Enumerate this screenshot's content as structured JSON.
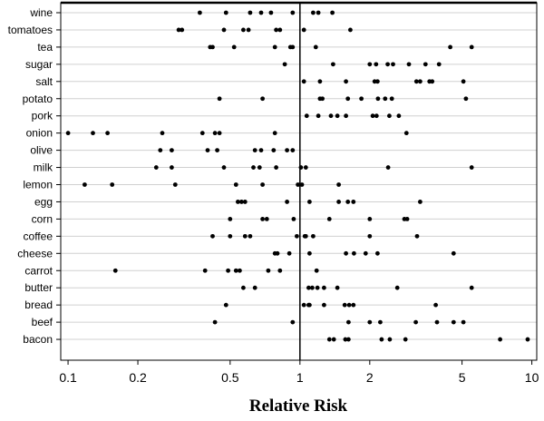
{
  "chart_data": {
    "type": "scatter",
    "xscale": "log",
    "xlim": [
      0.093,
      10.5
    ],
    "xlabel": "Relative Risk",
    "xticks": [
      0.1,
      0.2,
      0.5,
      1,
      2,
      5,
      10
    ],
    "xtick_labels": [
      "0.1",
      "0.2",
      "0.5",
      "1",
      "2",
      "5",
      "10"
    ],
    "reference_line": 1,
    "grid": "horizontal",
    "categories": [
      "wine",
      "tomatoes",
      "tea",
      "sugar",
      "salt",
      "potato",
      "pork",
      "onion",
      "olive",
      "milk",
      "lemon",
      "egg",
      "corn",
      "coffee",
      "cheese",
      "carrot",
      "butter",
      "bread",
      "beef",
      "bacon"
    ],
    "series": [
      {
        "category": "wine",
        "values": [
          0.37,
          0.48,
          0.61,
          0.68,
          0.75,
          0.93,
          1.14,
          1.2,
          1.38
        ]
      },
      {
        "category": "tomatoes",
        "values": [
          0.3,
          0.31,
          0.47,
          0.57,
          0.6,
          0.79,
          0.82,
          1.04,
          1.65
        ]
      },
      {
        "category": "tea",
        "values": [
          0.41,
          0.42,
          0.52,
          0.78,
          0.91,
          0.93,
          1.17,
          4.45,
          5.5
        ]
      },
      {
        "category": "sugar",
        "values": [
          0.86,
          1.39,
          2.0,
          2.13,
          2.39,
          2.52,
          2.95,
          3.48,
          3.98
        ]
      },
      {
        "category": "salt",
        "values": [
          1.04,
          1.22,
          1.58,
          2.1,
          2.16,
          3.18,
          3.3,
          3.62,
          3.72,
          5.07
        ]
      },
      {
        "category": "potato",
        "values": [
          0.45,
          0.69,
          1.22,
          1.25,
          1.61,
          1.84,
          2.17,
          2.33,
          2.49,
          5.2
        ]
      },
      {
        "category": "pork",
        "values": [
          1.07,
          1.2,
          1.36,
          1.45,
          1.58,
          2.06,
          2.14,
          2.43,
          2.67
        ]
      },
      {
        "category": "onion",
        "values": [
          0.1,
          0.128,
          0.148,
          0.255,
          0.38,
          0.43,
          0.45,
          0.78,
          2.88
        ]
      },
      {
        "category": "olive",
        "values": [
          0.25,
          0.28,
          0.4,
          0.44,
          0.64,
          0.68,
          0.77,
          0.88,
          0.93
        ]
      },
      {
        "category": "milk",
        "values": [
          0.24,
          0.28,
          0.47,
          0.63,
          0.67,
          0.79,
          1.01,
          1.06,
          2.4,
          5.5
        ]
      },
      {
        "category": "lemon",
        "values": [
          0.118,
          0.155,
          0.29,
          0.53,
          0.69,
          0.98,
          1.02,
          1.47
        ]
      },
      {
        "category": "egg",
        "values": [
          0.54,
          0.56,
          0.58,
          0.88,
          1.1,
          1.47,
          1.61,
          1.7,
          3.3
        ]
      },
      {
        "category": "corn",
        "values": [
          0.5,
          0.69,
          0.72,
          0.94,
          1.34,
          2.0,
          2.82,
          2.9
        ]
      },
      {
        "category": "coffee",
        "values": [
          0.42,
          0.5,
          0.58,
          0.61,
          0.97,
          1.05,
          1.06,
          1.14,
          2.0,
          3.2
        ]
      },
      {
        "category": "cheese",
        "values": [
          0.78,
          0.8,
          0.9,
          1.1,
          1.58,
          1.71,
          1.92,
          2.16,
          4.6
        ]
      },
      {
        "category": "carrot",
        "values": [
          0.16,
          0.39,
          0.49,
          0.53,
          0.55,
          0.73,
          0.82,
          1.18
        ]
      },
      {
        "category": "butter",
        "values": [
          0.57,
          0.64,
          1.09,
          1.13,
          1.19,
          1.27,
          1.45,
          2.63,
          5.5
        ]
      },
      {
        "category": "bread",
        "values": [
          0.48,
          1.04,
          1.09,
          1.1,
          1.27,
          1.56,
          1.63,
          1.7,
          3.85
        ]
      },
      {
        "category": "beef",
        "values": [
          0.43,
          0.93,
          1.62,
          2.0,
          2.22,
          3.16,
          3.9,
          4.6,
          5.07
        ]
      },
      {
        "category": "bacon",
        "values": [
          1.34,
          1.4,
          1.57,
          1.62,
          2.25,
          2.44,
          2.85,
          7.3,
          9.6
        ]
      }
    ]
  }
}
